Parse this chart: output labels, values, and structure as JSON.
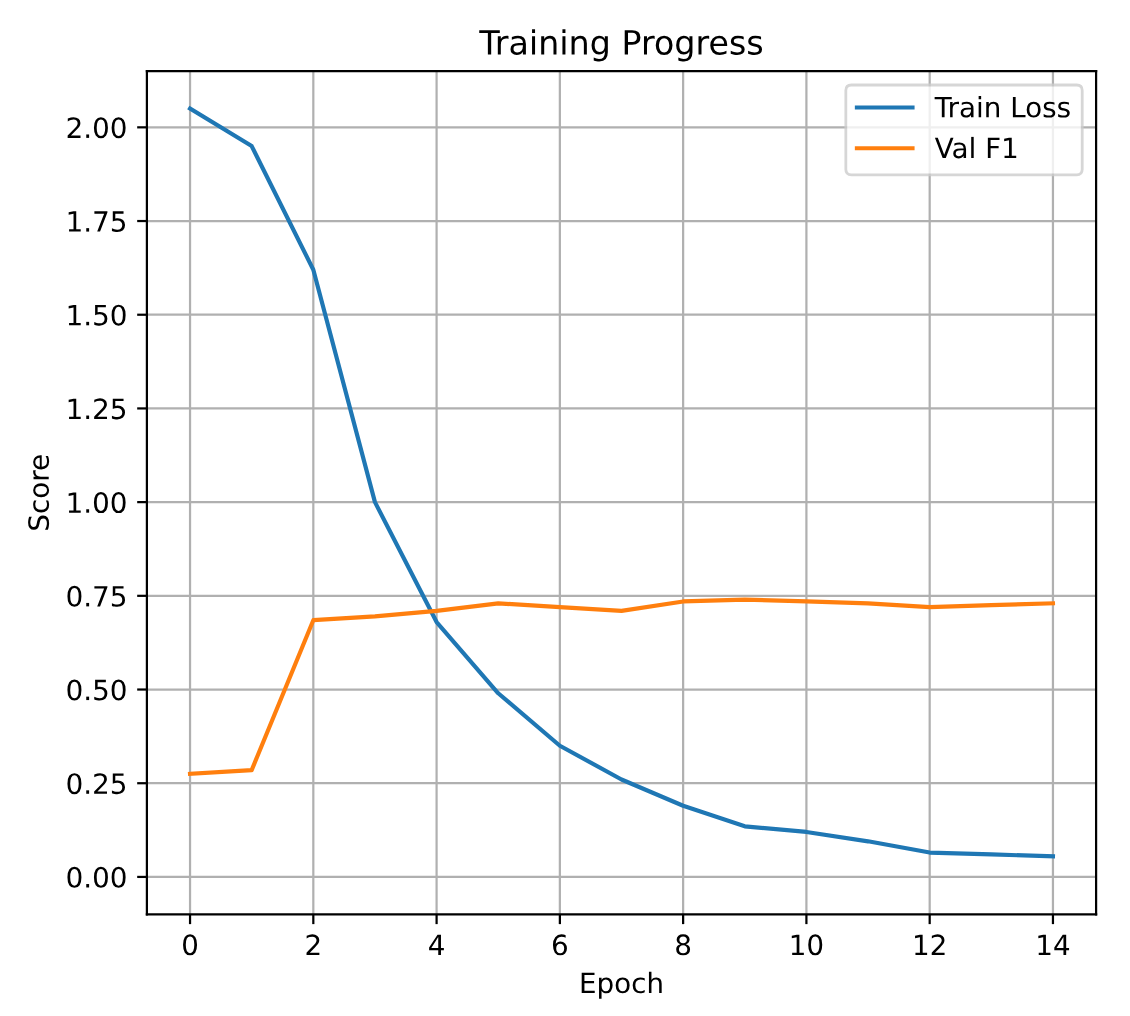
{
  "chart_data": {
    "type": "line",
    "title": "Training Progress",
    "xlabel": "Epoch",
    "ylabel": "Score",
    "x": [
      0,
      1,
      2,
      3,
      4,
      5,
      6,
      7,
      8,
      9,
      10,
      11,
      12,
      13,
      14
    ],
    "series": [
      {
        "name": "Train Loss",
        "color": "#1f77b4",
        "values": [
          2.05,
          1.95,
          1.62,
          1.0,
          0.68,
          0.49,
          0.35,
          0.26,
          0.19,
          0.135,
          0.12,
          0.095,
          0.065,
          0.06,
          0.055
        ]
      },
      {
        "name": "Val F1",
        "color": "#ff7f0e",
        "values": [
          0.275,
          0.285,
          0.685,
          0.695,
          0.71,
          0.73,
          0.72,
          0.71,
          0.735,
          0.74,
          0.735,
          0.73,
          0.72,
          0.725,
          0.73
        ]
      }
    ],
    "xlim": [
      -0.7,
      14.7
    ],
    "ylim": [
      -0.1,
      2.15
    ],
    "xticks": [
      0,
      2,
      4,
      6,
      8,
      10,
      12,
      14
    ],
    "yticks": [
      {
        "value": 0,
        "label": "0.00"
      },
      {
        "value": 0.25,
        "label": "0.25"
      },
      {
        "value": 0.5,
        "label": "0.50"
      },
      {
        "value": 0.75,
        "label": "0.75"
      },
      {
        "value": 1,
        "label": "1.00"
      },
      {
        "value": 1.25,
        "label": "1.25"
      },
      {
        "value": 1.5,
        "label": "1.50"
      },
      {
        "value": 1.75,
        "label": "1.75"
      },
      {
        "value": 2,
        "label": "2.00"
      }
    ],
    "grid": true,
    "legend": "top right"
  }
}
